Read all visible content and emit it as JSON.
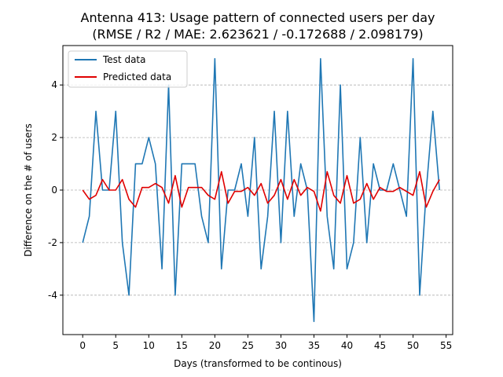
{
  "chart_data": {
    "type": "line",
    "title": "Antenna 413: Usage pattern of connected users per day",
    "subtitle": "(RMSE / R2 / MAE: 2.623621 / -0.172688 / 2.098179)",
    "xlabel": "Days (transformed to be continous)",
    "ylabel": "Difference on the # of users",
    "xlim": [
      -3,
      56
    ],
    "ylim": [
      -5.5,
      5.5
    ],
    "xticks": [
      0,
      5,
      10,
      15,
      20,
      25,
      30,
      35,
      40,
      45,
      50,
      55
    ],
    "yticks": [
      -4,
      -2,
      0,
      2,
      4
    ],
    "grid": "horizontal-dashed",
    "legend": "top-left",
    "x": [
      0,
      1,
      2,
      3,
      4,
      5,
      6,
      7,
      8,
      9,
      10,
      11,
      12,
      13,
      14,
      15,
      16,
      17,
      18,
      19,
      20,
      21,
      22,
      23,
      24,
      25,
      26,
      27,
      28,
      29,
      30,
      31,
      32,
      33,
      34,
      35,
      36,
      37,
      38,
      39,
      40,
      41,
      42,
      43,
      44,
      45,
      46,
      47,
      48,
      49,
      50,
      51,
      52,
      53,
      54
    ],
    "series": [
      {
        "name": "Test data",
        "color": "#1f77b4",
        "values": [
          -2,
          -1,
          3,
          0,
          0,
          3,
          -2,
          -4,
          1,
          1,
          2,
          1,
          -3,
          4,
          -4,
          1,
          1,
          1,
          -1,
          -2,
          5,
          -3,
          0,
          0,
          1,
          -1,
          2,
          -3,
          -1,
          3,
          -2,
          3,
          -1,
          1,
          0,
          -5,
          5,
          -1,
          -3,
          4,
          -3,
          -2,
          2,
          -2,
          1,
          0,
          0,
          1,
          0,
          -1,
          5,
          -4,
          0,
          3,
          0
        ]
      },
      {
        "name": "Predicted data",
        "color": "#e00000",
        "values": [
          0,
          -0.35,
          -0.2,
          0.4,
          0,
          0,
          0.4,
          -0.35,
          -0.65,
          0.1,
          0.1,
          0.25,
          0.1,
          -0.5,
          0.55,
          -0.65,
          0.1,
          0.1,
          0.1,
          -0.2,
          -0.35,
          0.7,
          -0.5,
          -0.05,
          -0.05,
          0.1,
          -0.2,
          0.25,
          -0.5,
          -0.2,
          0.4,
          -0.35,
          0.4,
          -0.2,
          0.1,
          -0.05,
          -0.8,
          0.7,
          -0.2,
          -0.5,
          0.55,
          -0.5,
          -0.35,
          0.25,
          -0.35,
          0.1,
          -0.05,
          -0.05,
          0.1,
          -0.05,
          -0.2,
          0.7,
          -0.65,
          -0.05,
          0.4
        ]
      }
    ]
  }
}
